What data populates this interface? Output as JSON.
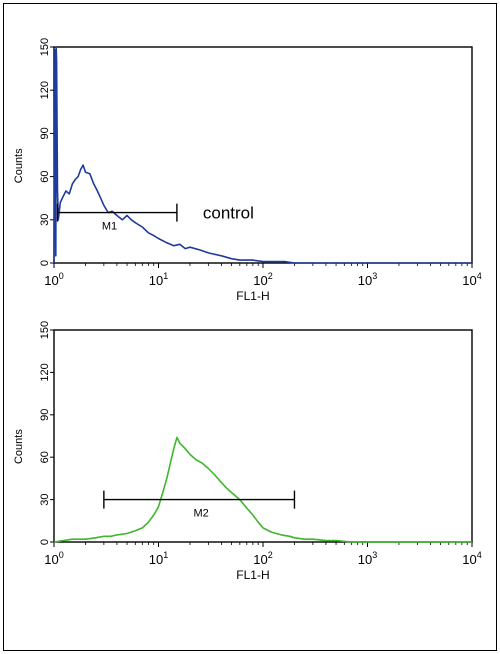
{
  "chart_data": [
    {
      "type": "line",
      "xlabel": "FL1-H",
      "ylabel": "Counts",
      "x_scale": "log",
      "xlim": [
        1,
        10000
      ],
      "ylim": [
        0,
        150
      ],
      "y_ticks": [
        0,
        30,
        60,
        90,
        120,
        150
      ],
      "x_ticks": [
        {
          "base": "10",
          "exp": "0"
        },
        {
          "base": "10",
          "exp": "1"
        },
        {
          "base": "10",
          "exp": "2"
        },
        {
          "base": "10",
          "exp": "3"
        },
        {
          "base": "10",
          "exp": "4"
        }
      ],
      "annotation": "control",
      "gate": {
        "label": "M1",
        "x_start": 1.08,
        "x_end": 15,
        "y": 35
      },
      "series": [
        {
          "color": "#1f3b9c",
          "x": [
            1.0,
            1.02,
            1.04,
            1.05,
            1.06,
            1.08,
            1.1,
            1.15,
            1.2,
            1.3,
            1.4,
            1.5,
            1.6,
            1.7,
            1.8,
            1.9,
            2.0,
            2.2,
            2.4,
            2.6,
            2.8,
            3.0,
            3.3,
            3.6,
            4.0,
            4.5,
            5.0,
            5.5,
            6.0,
            7.0,
            8.0,
            9.0,
            10,
            12,
            14,
            16,
            18,
            20,
            25,
            30,
            40,
            50,
            60,
            80,
            100,
            130,
            160,
            200,
            300,
            500,
            1000,
            10000
          ],
          "y": [
            0,
            148,
            5,
            150,
            140,
            50,
            30,
            42,
            45,
            50,
            48,
            55,
            58,
            60,
            65,
            68,
            63,
            62,
            55,
            50,
            45,
            40,
            35,
            36,
            33,
            30,
            33,
            30,
            28,
            25,
            21,
            19,
            17,
            14,
            12,
            13,
            10,
            11,
            9,
            7,
            5,
            3,
            2,
            2,
            1,
            1,
            1,
            0,
            0,
            0,
            0,
            0
          ]
        }
      ]
    },
    {
      "type": "line",
      "xlabel": "FL1-H",
      "ylabel": "Counts",
      "x_scale": "log",
      "xlim": [
        1,
        10000
      ],
      "ylim": [
        0,
        150
      ],
      "y_ticks": [
        0,
        30,
        60,
        90,
        120,
        150
      ],
      "x_ticks": [
        {
          "base": "10",
          "exp": "0"
        },
        {
          "base": "10",
          "exp": "1"
        },
        {
          "base": "10",
          "exp": "2"
        },
        {
          "base": "10",
          "exp": "3"
        },
        {
          "base": "10",
          "exp": "4"
        }
      ],
      "gate": {
        "label": "M2",
        "x_start": 3,
        "x_end": 200,
        "y": 30
      },
      "series": [
        {
          "color": "#3fb62c",
          "x": [
            1.0,
            1.5,
            2.0,
            2.5,
            3.0,
            3.5,
            4.0,
            5.0,
            6.0,
            7.0,
            8.0,
            9.0,
            10,
            11,
            12,
            13,
            14,
            15,
            16,
            18,
            20,
            23,
            26,
            30,
            35,
            40,
            45,
            50,
            60,
            70,
            80,
            90,
            100,
            120,
            150,
            180,
            200,
            250,
            300,
            400,
            500,
            700,
            1000,
            2000,
            10000
          ],
          "y": [
            0,
            2,
            2,
            3,
            4,
            4,
            5,
            6,
            8,
            10,
            14,
            19,
            25,
            35,
            45,
            56,
            66,
            74,
            70,
            66,
            62,
            58,
            56,
            52,
            47,
            42,
            38,
            35,
            30,
            24,
            19,
            14,
            10,
            7,
            5,
            4,
            3,
            2,
            2,
            1,
            1,
            0,
            0,
            0,
            0
          ]
        }
      ]
    }
  ]
}
